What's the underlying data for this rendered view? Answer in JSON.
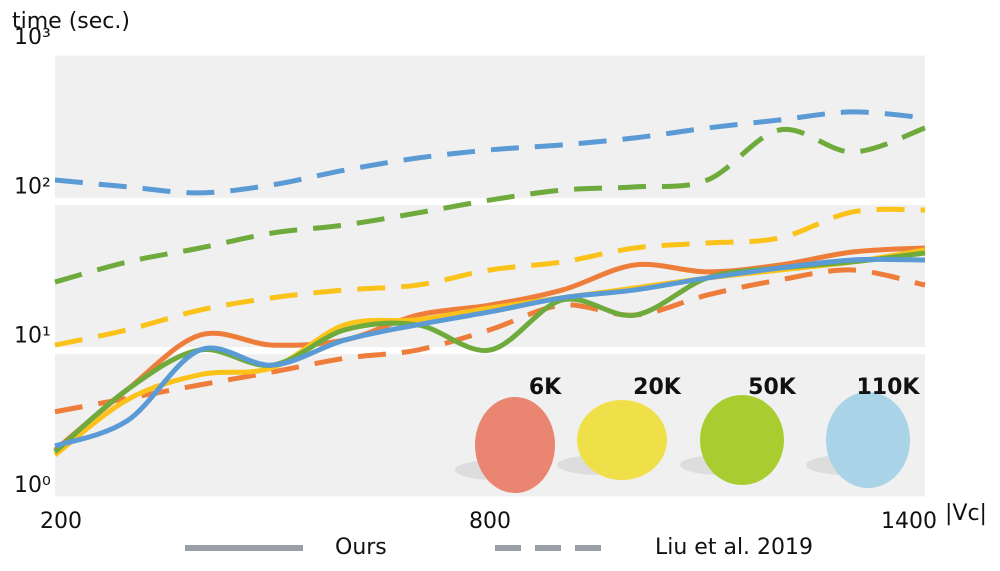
{
  "chart_data": {
    "type": "line",
    "y_label": "time (sec.)",
    "x_label": "|Vc|",
    "x": [
      200,
      300,
      400,
      500,
      600,
      700,
      800,
      900,
      1000,
      1100,
      1200,
      1300,
      1400
    ],
    "xlim": [
      200,
      1400
    ],
    "xticks": [
      200,
      800,
      1400
    ],
    "ylim": [
      1,
      1000
    ],
    "log_y": true,
    "grid": true,
    "yticks": [
      {
        "value": 1,
        "label": "10⁰"
      },
      {
        "value": 10,
        "label": "10¹"
      },
      {
        "value": 100,
        "label": "10²"
      },
      {
        "value": 1000,
        "label": "10³"
      }
    ],
    "legend": [
      {
        "label": "Ours",
        "dashed": false
      },
      {
        "label": "Liu et al.  2019",
        "dashed": true
      }
    ],
    "series": [
      {
        "name": "6K",
        "color": "#ee7d3b",
        "values": [
          [
            2.16,
            5.5,
            12.7,
            10.9,
            11.8,
            17.3,
            20.2,
            25.5,
            37.5,
            33.7,
            37.5,
            45.8,
            48.7
          ],
          [
            3.9,
            4.8,
            5.9,
            7.2,
            8.9,
            10.1,
            13.8,
            20.2,
            17.3,
            23.6,
            29.8,
            34.7,
            27.5
          ]
        ]
      },
      {
        "name": "20K",
        "color": "#fbc21a",
        "values": [
          [
            2.0,
            4.7,
            6.9,
            7.7,
            14.9,
            16.1,
            19.3,
            22.6,
            26.3,
            30.7,
            34.7,
            39.3,
            47.3
          ],
          [
            10.9,
            13.8,
            18.7,
            22.6,
            25.5,
            27.5,
            34.7,
            39.3,
            48.7,
            52.6,
            56.9,
            84.9,
            87.6
          ]
        ]
      },
      {
        "name": "50K",
        "color": "#6eaa3c",
        "values": [
          [
            2.1,
            5.5,
            10.1,
            8.0,
            13.8,
            14.9,
            10.1,
            21.9,
            17.3,
            30.7,
            35.8,
            39.3,
            45.1
          ],
          [
            28.8,
            39.3,
            48.7,
            61.4,
            69.5,
            83.6,
            102,
            119,
            125,
            139,
            301,
            214,
            310
          ]
        ]
      },
      {
        "name": "110K",
        "color": "#5b9bd5",
        "values": [
          [
            2.3,
            3.4,
            10.1,
            8.0,
            11.8,
            14.9,
            18.2,
            22.6,
            25.5,
            30.7,
            35.8,
            40.5,
            40.5
          ],
          [
            139,
            125,
            114,
            129,
            162,
            195,
            221,
            239,
            266,
            310,
            351,
            397,
            362
          ]
        ]
      }
    ]
  }
}
